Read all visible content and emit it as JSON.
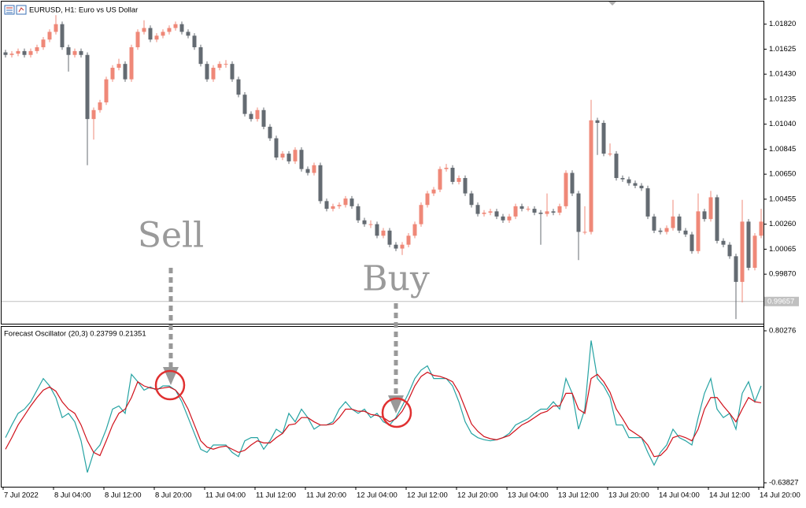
{
  "chart_data": [
    {
      "type": "candlestick",
      "title": "EURUSD, H1:  Euro vs US Dollar",
      "up_color": "#ef8878",
      "down_color": "#646b72",
      "ylim": [
        0.9949,
        1.0199
      ],
      "yticks": [
        {
          "value": 1.0182,
          "label": "1.01820"
        },
        1.01625,
        {
          "value": 1.0143,
          "label": "1.01430"
        },
        1.01235,
        {
          "value": 1.0104,
          "label": "1.01040"
        },
        1.00845,
        {
          "value": 1.0065,
          "label": "1.00650"
        },
        1.00455,
        {
          "value": 1.0026,
          "label": "1.00260"
        },
        1.00065,
        {
          "value": 0.9987,
          "label": "0.99870"
        }
      ],
      "last_price": 0.99657,
      "annotations": [
        "Sell",
        "Buy"
      ],
      "categories": [
        "7 Jul 2022",
        null,
        null,
        null,
        null,
        null,
        null,
        null,
        "8 Jul 04:00",
        null,
        null,
        null,
        null,
        null,
        null,
        null,
        "8 Jul 12:00",
        null,
        null,
        null,
        null,
        null,
        null,
        null,
        "8 Jul 20:00",
        null,
        null,
        null,
        null,
        null,
        null,
        null,
        "11 Jul 04:00",
        null,
        null,
        null,
        null,
        null,
        null,
        null,
        "11 Jul 12:00",
        null,
        null,
        null,
        null,
        null,
        null,
        null,
        "11 Jul 20:00",
        null,
        null,
        null,
        null,
        null,
        null,
        null,
        "12 Jul 04:00",
        null,
        null,
        null,
        null,
        null,
        null,
        null,
        "12 Jul 12:00",
        null,
        null,
        null,
        null,
        null,
        null,
        null,
        "12 Jul 20:00",
        null,
        null,
        null,
        null,
        null,
        null,
        null,
        "13 Jul 04:00",
        null,
        null,
        null,
        null,
        null,
        null,
        null,
        "13 Jul 12:00",
        null,
        null,
        null,
        null,
        null,
        null,
        null,
        "13 Jul 20:00",
        null,
        null,
        null,
        null,
        null,
        null,
        null,
        "14 Jul 04:00",
        null,
        null,
        null,
        null,
        null,
        null,
        null,
        "14 Jul 12:00",
        null,
        null,
        null,
        null,
        null,
        null,
        null,
        "14 Jul 20:00"
      ],
      "open": [
        1.016,
        1.0158,
        1.0159,
        1.0161,
        1.0158,
        1.0161,
        1.0164,
        1.017,
        1.0176,
        1.0182,
        1.0164,
        1.0158,
        1.0161,
        1.0158,
        1.0108,
        1.0115,
        1.0121,
        1.0139,
        1.0148,
        1.0151,
        1.0139,
        1.0164,
        1.0176,
        1.0179,
        1.017,
        1.0173,
        1.0176,
        1.0179,
        1.0182,
        1.0176,
        1.0173,
        1.0164,
        1.0151,
        1.0139,
        1.0148,
        1.0151,
        1.0151,
        1.0139,
        1.0127,
        1.0112,
        1.0108,
        1.0115,
        1.0102,
        1.0093,
        1.0078,
        1.0081,
        1.0075,
        1.0084,
        1.0069,
        1.0066,
        1.0072,
        1.0044,
        1.0038,
        1.004,
        1.0041,
        1.0046,
        1.004,
        1.0029,
        1.0026,
        1.0026,
        1.0017,
        1.0021,
        1.001,
        1.0007,
        1.001,
        1.0017,
        1.0026,
        1.0041,
        1.005,
        1.0053,
        1.0069,
        1.007,
        1.0059,
        1.0062,
        1.005,
        1.0041,
        1.0034,
        1.0035,
        1.0036,
        1.0032,
        1.0029,
        1.0032,
        1.004,
        1.0038,
        1.0038,
        1.0035,
        1.0034,
        1.0036,
        1.0035,
        1.004,
        1.0066,
        1.005,
        1.002,
        1.002,
        1.0107,
        1.0105,
        1.0081,
        1.0081,
        1.0062,
        1.0061,
        1.0058,
        1.0056,
        1.0054,
        1.0032,
        1.0021,
        1.002,
        1.0023,
        1.0032,
        1.0021,
        1.0018,
        1.0005,
        1.0036,
        1.003,
        1.0047,
        1.0013,
        1.001,
        1.0001,
        0.9981,
        1.0028,
        0.9992,
        1.0017
      ],
      "high": [
        1.0162,
        1.0161,
        1.0163,
        1.0163,
        1.0163,
        1.0166,
        1.0172,
        1.0178,
        1.0189,
        1.0184,
        1.0166,
        1.0163,
        1.0163,
        1.016,
        1.0117,
        1.0123,
        1.0141,
        1.015,
        1.0155,
        1.0153,
        1.0166,
        1.0178,
        1.0185,
        1.0181,
        1.0175,
        1.0178,
        1.0181,
        1.0184,
        1.0184,
        1.0178,
        1.0175,
        1.0166,
        1.0153,
        1.015,
        1.0153,
        1.0154,
        1.0153,
        1.0141,
        1.0129,
        1.0114,
        1.0117,
        1.0117,
        1.0104,
        1.0095,
        1.0083,
        1.0083,
        1.0086,
        1.0086,
        1.0071,
        1.0074,
        1.0074,
        1.0046,
        1.0042,
        1.0043,
        1.0048,
        1.0048,
        1.0042,
        1.0031,
        1.0029,
        1.0028,
        1.0023,
        1.0023,
        1.0012,
        1.0012,
        1.0019,
        1.0028,
        1.0043,
        1.0052,
        1.0055,
        1.0071,
        1.0073,
        1.0072,
        1.0064,
        1.0064,
        1.0052,
        1.0043,
        1.0037,
        1.0038,
        1.0038,
        1.0034,
        1.0034,
        1.0042,
        1.0042,
        1.004,
        1.004,
        1.0037,
        1.005,
        1.0038,
        1.0042,
        1.0068,
        1.0068,
        1.0052,
        1.004,
        1.0123,
        1.0109,
        1.0107,
        1.0089,
        1.0083,
        1.0064,
        1.0063,
        1.006,
        1.0058,
        1.0056,
        1.0034,
        1.0023,
        1.0025,
        1.0045,
        1.0034,
        1.0023,
        1.002,
        1.005,
        1.0038,
        1.0052,
        1.0049,
        1.0015,
        1.0012,
        1.0003,
        1.0045,
        1.003,
        1.0019,
        1.0038
      ],
      "low": [
        1.0156,
        1.0156,
        1.0157,
        1.0156,
        1.0156,
        1.0159,
        1.0162,
        1.0168,
        1.0174,
        1.0162,
        1.0145,
        1.0156,
        1.0156,
        1.0072,
        1.0092,
        1.0113,
        1.0119,
        1.0137,
        1.0146,
        1.0137,
        1.0137,
        1.0162,
        1.0174,
        1.0168,
        1.0168,
        1.0171,
        1.0174,
        1.0177,
        1.0174,
        1.0171,
        1.0162,
        1.0149,
        1.0137,
        1.0137,
        1.0146,
        1.0148,
        1.0137,
        1.0125,
        1.011,
        1.0106,
        1.0106,
        1.01,
        1.0091,
        1.0076,
        1.0076,
        1.0073,
        1.0073,
        1.0067,
        1.0064,
        1.0064,
        1.0042,
        1.0036,
        1.0036,
        1.0038,
        1.0039,
        1.0038,
        1.0027,
        1.0024,
        1.0023,
        1.0015,
        1.0015,
        1.0008,
        1.0005,
        1.0002,
        1.0008,
        1.0015,
        1.0024,
        1.0039,
        1.0048,
        1.0051,
        1.0067,
        1.0057,
        1.0057,
        1.0048,
        1.0039,
        1.0032,
        1.0032,
        1.0033,
        1.003,
        1.0027,
        1.0027,
        1.003,
        1.0036,
        1.0036,
        1.0033,
        1.001,
        1.0032,
        1.0033,
        1.0033,
        1.0038,
        1.0048,
        0.9998,
        1.0018,
        1.0018,
        1.008,
        1.0079,
        1.0079,
        1.006,
        1.0059,
        1.0056,
        1.0054,
        1.0052,
        1.003,
        1.0019,
        1.0018,
        1.0018,
        1.0021,
        1.0019,
        1.0016,
        1.0003,
        1.0003,
        1.0028,
        1.0028,
        1.0011,
        1.0008,
        0.9999,
        0.9952,
        0.9965,
        0.999,
        0.999,
        1.0015
      ],
      "close": [
        1.0158,
        1.0159,
        1.0161,
        1.0158,
        1.0161,
        1.0164,
        1.017,
        1.0176,
        1.0182,
        1.0164,
        1.0158,
        1.0161,
        1.0158,
        1.0108,
        1.0115,
        1.0121,
        1.0139,
        1.0148,
        1.0151,
        1.0139,
        1.0164,
        1.0176,
        1.0179,
        1.017,
        1.0173,
        1.0176,
        1.0179,
        1.0182,
        1.0176,
        1.0173,
        1.0164,
        1.0151,
        1.0139,
        1.0148,
        1.0151,
        1.0151,
        1.0139,
        1.0127,
        1.0112,
        1.0108,
        1.0115,
        1.0102,
        1.0093,
        1.0078,
        1.0081,
        1.0075,
        1.0084,
        1.0069,
        1.0066,
        1.0072,
        1.0044,
        1.0038,
        1.004,
        1.0041,
        1.0046,
        1.004,
        1.0029,
        1.0026,
        1.0026,
        1.0017,
        1.0021,
        1.001,
        1.0007,
        1.001,
        1.0017,
        1.0026,
        1.0041,
        1.005,
        1.0053,
        1.0069,
        1.007,
        1.0059,
        1.0062,
        1.005,
        1.0041,
        1.0034,
        1.0035,
        1.0036,
        1.0032,
        1.0029,
        1.0032,
        1.004,
        1.0038,
        1.0038,
        1.0035,
        1.0034,
        1.0036,
        1.0035,
        1.004,
        1.0066,
        1.005,
        1.002,
        1.002,
        1.0107,
        1.0105,
        1.0081,
        1.0081,
        1.0062,
        1.0061,
        1.0058,
        1.0056,
        1.0054,
        1.0032,
        1.0021,
        1.002,
        1.0023,
        1.0032,
        1.0021,
        1.0018,
        1.0005,
        1.0036,
        1.003,
        1.0047,
        1.0013,
        1.001,
        1.0001,
        0.9981,
        1.0028,
        0.9992,
        1.0017,
        1.0028
      ]
    },
    {
      "type": "line",
      "title": "Forecast Oscillator (20,3) 0.23799 0.21351",
      "ylim": [
        -0.668,
        0.84
      ],
      "yticks": [
        0.80276,
        -0.63827
      ],
      "series": [
        {
          "color": "#26a3a3",
          "values": [
            -0.21,
            -0.09,
            0.02,
            0.06,
            0.13,
            0.24,
            0.35,
            0.28,
            0.17,
            -0.02,
            0.02,
            -0.06,
            -0.24,
            -0.54,
            -0.35,
            -0.28,
            -0.13,
            0.06,
            0.09,
            0.02,
            0.39,
            0.32,
            0.24,
            0.27,
            0.24,
            0.28,
            0.28,
            0.24,
            0.13,
            -0.02,
            -0.17,
            -0.32,
            -0.35,
            -0.28,
            -0.28,
            -0.28,
            -0.35,
            -0.39,
            -0.24,
            -0.21,
            -0.21,
            -0.32,
            -0.24,
            -0.13,
            -0.17,
            0.02,
            -0.06,
            0.06,
            -0.02,
            -0.13,
            -0.09,
            -0.09,
            -0.06,
            0.06,
            0.13,
            0.06,
            0.02,
            0.06,
            -0.02,
            0.02,
            -0.06,
            -0.09,
            -0.02,
            0.09,
            0.21,
            0.35,
            0.43,
            0.47,
            0.35,
            0.35,
            0.35,
            0.28,
            0.13,
            -0.06,
            -0.17,
            -0.21,
            -0.23,
            -0.24,
            -0.23,
            -0.21,
            -0.17,
            -0.09,
            -0.06,
            -0.03,
            0.02,
            0.06,
            0.06,
            0.13,
            0.06,
            0.35,
            0.21,
            -0.13,
            0.06,
            0.71,
            0.35,
            0.28,
            0.17,
            -0.09,
            -0.09,
            -0.21,
            -0.21,
            -0.21,
            -0.35,
            -0.47,
            -0.35,
            -0.28,
            -0.13,
            -0.21,
            -0.24,
            -0.28,
            -0.02,
            0.21,
            0.35,
            0.06,
            -0.02,
            0.02,
            -0.13,
            0.21,
            0.32,
            0.13,
            0.28
          ]
        },
        {
          "color": "#d0101a",
          "values": [
            -0.32,
            -0.21,
            -0.09,
            0,
            0.09,
            0.17,
            0.24,
            0.27,
            0.23,
            0.13,
            0.06,
            0.02,
            -0.09,
            -0.24,
            -0.35,
            -0.38,
            -0.24,
            -0.09,
            0.02,
            0.06,
            0.17,
            0.32,
            0.28,
            0.26,
            0.25,
            0.26,
            0.27,
            0.24,
            0.17,
            0.06,
            -0.09,
            -0.24,
            -0.3,
            -0.32,
            -0.3,
            -0.29,
            -0.32,
            -0.35,
            -0.33,
            -0.28,
            -0.24,
            -0.26,
            -0.26,
            -0.21,
            -0.17,
            -0.09,
            -0.08,
            -0.02,
            -0.02,
            -0.06,
            -0.09,
            -0.09,
            -0.08,
            -0.02,
            0.06,
            0.06,
            0.04,
            0.04,
            0.01,
            0,
            -0.02,
            -0.06,
            -0.03,
            0.04,
            0.15,
            0.28,
            0.37,
            0.41,
            0.38,
            0.37,
            0.35,
            0.32,
            0.22,
            0.07,
            -0.08,
            -0.15,
            -0.2,
            -0.22,
            -0.23,
            -0.21,
            -0.19,
            -0.14,
            -0.09,
            -0.06,
            -0.02,
            0.02,
            0.04,
            0.09,
            0.09,
            0.21,
            0.21,
            0.06,
            0.02,
            0.35,
            0.39,
            0.32,
            0.22,
            0.06,
            -0.03,
            -0.13,
            -0.17,
            -0.21,
            -0.28,
            -0.39,
            -0.38,
            -0.32,
            -0.21,
            -0.19,
            -0.21,
            -0.24,
            -0.13,
            0.06,
            0.17,
            0.17,
            0.09,
            0.02,
            -0.06,
            0.06,
            0.17,
            0.13,
            0.12
          ]
        }
      ]
    }
  ]
}
